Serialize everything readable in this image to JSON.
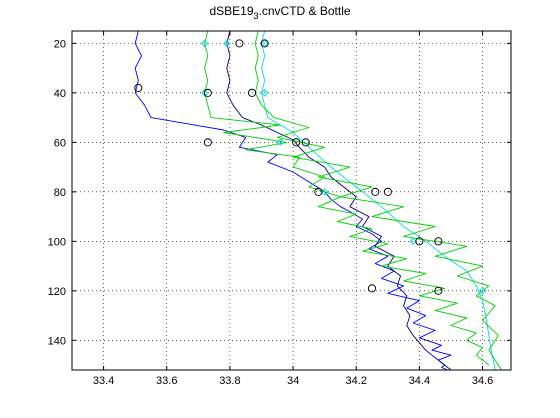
{
  "chart_data": {
    "type": "line",
    "title": "dSBE19",
    "title_sub": "3",
    "title_rest": ".cnvCTD & Bottle",
    "xlabel": "",
    "ylabel": "",
    "xlim": [
      33.3,
      34.69
    ],
    "ylim": [
      15,
      152
    ],
    "y_reversed": true,
    "x_ticks": [
      33.4,
      33.6,
      33.8,
      34,
      34.2,
      34.4,
      34.6
    ],
    "x_tick_labels": [
      "33.4",
      "33.6",
      "33.8",
      "34",
      "34.2",
      "34.4",
      "34.6"
    ],
    "y_ticks": [
      20,
      40,
      60,
      80,
      100,
      120,
      140
    ],
    "y_tick_labels": [
      "20",
      "40",
      "60",
      "80",
      "100",
      "120",
      "140"
    ],
    "grid": true,
    "legend": "none",
    "colors": {
      "blue": "#0000ff",
      "darkblue": "#000080",
      "green": "#00d000",
      "cyan": "#00e0e0",
      "bottle": "#000000",
      "red": "#ff0000"
    },
    "series": [
      {
        "color": "#0000ff",
        "x": [
          33.51,
          33.5,
          33.52,
          33.5,
          33.51,
          33.5,
          33.53,
          33.55,
          33.78,
          33.85,
          33.83,
          33.95,
          33.92,
          34.0,
          34.05,
          34.1,
          34.12,
          34.15,
          34.18,
          34.22,
          34.2,
          34.25,
          34.28,
          34.24,
          34.3,
          34.26,
          34.32,
          34.28,
          34.35,
          34.3,
          34.4,
          34.36,
          34.42,
          34.38,
          34.45,
          34.4,
          34.47,
          34.44,
          34.5,
          34.46,
          34.48,
          34.47,
          34.49
        ],
        "y": [
          15,
          20,
          25,
          30,
          35,
          40,
          45,
          50,
          55,
          58,
          62,
          65,
          68,
          72,
          76,
          80,
          83,
          86,
          88,
          91,
          94,
          97,
          100,
          103,
          106,
          109,
          112,
          115,
          118,
          121,
          124,
          127,
          130,
          133,
          136,
          139,
          142,
          144,
          146,
          148,
          150,
          151,
          152
        ]
      },
      {
        "color": "#000080",
        "x": [
          33.8,
          33.79,
          33.8,
          33.79,
          33.8,
          33.79,
          33.81,
          33.84,
          33.9,
          33.95,
          34.0,
          34.02,
          34.05,
          34.1,
          34.12,
          34.16,
          34.2,
          34.18,
          34.24,
          34.22,
          34.28,
          34.26,
          34.32,
          34.3,
          34.34,
          34.33,
          34.36,
          34.35,
          34.37,
          34.36,
          34.38,
          34.4,
          34.42,
          34.44,
          34.46,
          34.48,
          34.5
        ],
        "y": [
          15,
          20,
          25,
          30,
          35,
          40,
          45,
          50,
          53,
          56,
          59,
          62,
          66,
          70,
          74,
          78,
          82,
          86,
          90,
          94,
          98,
          102,
          106,
          110,
          114,
          118,
          122,
          126,
          130,
          134,
          138,
          141,
          144,
          146,
          148,
          150,
          152
        ]
      },
      {
        "color": "#00d000",
        "x": [
          33.73,
          33.72,
          33.73,
          33.72,
          33.73,
          33.72,
          33.73,
          33.74,
          33.96,
          33.78,
          33.98,
          33.85,
          34.02,
          34.0,
          34.1,
          34.05,
          34.15,
          34.08,
          34.2,
          34.14,
          34.25,
          34.18,
          34.3,
          34.22,
          34.36,
          34.28,
          34.42,
          34.35,
          34.48,
          34.4,
          34.52,
          34.45,
          34.55,
          34.5,
          34.58,
          34.55,
          34.6,
          34.58,
          34.62
        ],
        "y": [
          15,
          20,
          25,
          30,
          35,
          40,
          45,
          50,
          53,
          56,
          60,
          63,
          66,
          70,
          74,
          78,
          82,
          86,
          89,
          92,
          95,
          98,
          101,
          104,
          107,
          110,
          113,
          116,
          119,
          122,
          125,
          128,
          131,
          134,
          137,
          140,
          143,
          146,
          150
        ]
      },
      {
        "color": "#00e0e0",
        "x": [
          33.91,
          33.9,
          33.91,
          33.9,
          33.91,
          33.9,
          33.91,
          33.92,
          34.0,
          34.05,
          34.12,
          34.2,
          34.28,
          34.35,
          34.42,
          34.48,
          34.55,
          34.58,
          34.6,
          34.61,
          34.62,
          34.63,
          34.64
        ],
        "y": [
          15,
          20,
          25,
          30,
          35,
          40,
          45,
          50,
          56,
          62,
          70,
          78,
          86,
          94,
          100,
          106,
          112,
          118,
          124,
          130,
          138,
          146,
          152
        ]
      },
      {
        "color": "#00d000",
        "x": [
          33.89,
          33.88,
          33.89,
          33.88,
          33.89,
          33.88,
          33.9,
          33.94,
          34.05,
          33.95,
          34.1,
          34.0,
          34.18,
          34.08,
          34.25,
          34.15,
          34.35,
          34.25,
          34.45,
          34.35,
          34.55,
          34.45,
          34.6,
          34.52,
          34.62,
          34.58,
          34.64,
          34.6,
          34.65,
          34.62,
          34.66
        ],
        "y": [
          15,
          20,
          25,
          30,
          35,
          40,
          45,
          50,
          54,
          58,
          62,
          66,
          70,
          74,
          78,
          82,
          86,
          90,
          94,
          98,
          102,
          106,
          110,
          114,
          118,
          122,
          126,
          132,
          138,
          144,
          152
        ]
      }
    ],
    "bottles": {
      "x": [
        33.83,
        33.91,
        33.51,
        33.73,
        33.87,
        33.73,
        34.01,
        34.04,
        34.08,
        34.26,
        34.3,
        34.4,
        34.46,
        34.25,
        34.46
      ],
      "y": [
        20,
        20,
        38,
        40,
        40,
        60,
        60,
        60,
        80,
        80,
        80,
        100,
        100,
        119,
        120
      ]
    },
    "cyan_markers": {
      "x": [
        33.72,
        33.79,
        33.91,
        33.72,
        33.91,
        33.96,
        34.1,
        34.38,
        34.6
      ],
      "y": [
        20,
        20,
        20,
        40,
        40,
        60,
        80,
        100,
        120
      ]
    }
  }
}
